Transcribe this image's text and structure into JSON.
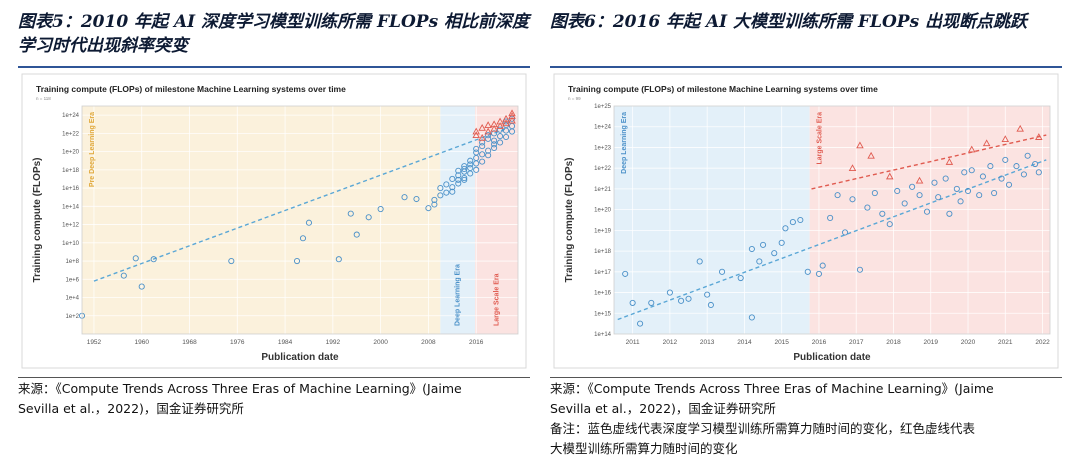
{
  "figures": [
    {
      "title": "图表5：2010 年起 AI 深度学习模型训练所需 FLOPs 相比前深度学习时代出现斜率突变",
      "source_line1": "来源：《Compute Trends Across Three Eras of Machine Learning》(Jaime",
      "source_line2": "Sevilla et al.，2022)，国金证券研究所",
      "notes": []
    },
    {
      "title": "图表6：2016 年起 AI 大模型训练所需 FLOPs 出现断点跳跃",
      "source_line1": "来源：《Compute Trends Across Three Eras of Machine Learning》(Jaime",
      "source_line2": "Sevilla et al.，2022)，国金证券研究所",
      "notes": [
        "备注：蓝色虚线代表深度学习模型训练所需算力随时间的变化，红色虚线代表",
        "大模型训练所需算力随时间的变化"
      ]
    }
  ],
  "chart_data": [
    {
      "type": "scatter",
      "title": "Training compute (FLOPs) of milestone Machine Learning systems over time",
      "subtitle": "n = 118",
      "xlabel": "Publication date",
      "ylabel": "Training compute (FLOPs)",
      "y_scale": "log",
      "xlim": [
        1950,
        2023
      ],
      "ylim_exp": [
        0,
        25
      ],
      "x_ticks": [
        "1952",
        "1960",
        "1968",
        "1976",
        "1984",
        "1992",
        "2000",
        "2008",
        "2016"
      ],
      "x_tick_values": [
        1952,
        1960,
        1968,
        1976,
        1984,
        1992,
        2000,
        2008,
        2016
      ],
      "y_ticks": [
        "1e+2",
        "1e+4",
        "1e+6",
        "1e+8",
        "1e+10",
        "1e+12",
        "1e+14",
        "1e+16",
        "1e+18",
        "1e+20",
        "1e+22",
        "1e+24"
      ],
      "y_tick_exps": [
        2,
        4,
        6,
        8,
        10,
        12,
        14,
        16,
        18,
        20,
        22,
        24
      ],
      "eras": [
        {
          "label": "Pre Deep Learning Era",
          "from": 1950,
          "to": 2010,
          "color": "#fbf1dc"
        },
        {
          "label": "Deep Learning Era",
          "from": 2010,
          "to": 2015.8,
          "color": "#e3f0f9"
        },
        {
          "label": "Large Scale Era",
          "from": 2015.8,
          "to": 2023,
          "color": "#fbe3e1"
        }
      ],
      "era_label_colors": [
        "#e0a83a",
        "#4a90c8",
        "#e05a4f"
      ],
      "trend_lines": [
        {
          "name": "",
          "color": "#5aa7d6",
          "from": [
            1952,
            5.8
          ],
          "to": [
            2021,
            22.5
          ]
        }
      ],
      "series": [
        {
          "name": "",
          "marker": "circle",
          "color": "#4a90c8",
          "points": [
            [
              1950,
              2.0
            ],
            [
              1957,
              6.4
            ],
            [
              1959,
              8.3
            ],
            [
              1960,
              5.2
            ],
            [
              1962,
              8.2
            ],
            [
              1975,
              8.0
            ],
            [
              1986,
              8.0
            ],
            [
              1987,
              10.5
            ],
            [
              1988,
              12.2
            ],
            [
              1993,
              8.2
            ],
            [
              1995,
              13.2
            ],
            [
              1996,
              10.9
            ],
            [
              1998,
              12.8
            ],
            [
              2000,
              13.7
            ],
            [
              2004,
              15.0
            ],
            [
              2006,
              14.8
            ],
            [
              2008,
              13.8
            ],
            [
              2009,
              14.2
            ],
            [
              2009,
              14.7
            ],
            [
              2010,
              15.2
            ],
            [
              2010,
              16.0
            ],
            [
              2011,
              15.5
            ],
            [
              2011,
              16.4
            ],
            [
              2012,
              16.1
            ],
            [
              2012,
              17.0
            ],
            [
              2012,
              15.6
            ],
            [
              2013,
              16.9
            ],
            [
              2013,
              17.4
            ],
            [
              2013,
              16.5
            ],
            [
              2013,
              17.9
            ],
            [
              2014,
              17.8
            ],
            [
              2014,
              18.4
            ],
            [
              2014,
              17.1
            ],
            [
              2014,
              18.1
            ],
            [
              2014,
              16.9
            ],
            [
              2015,
              18.6
            ],
            [
              2015,
              17.6
            ],
            [
              2015,
              19.0
            ],
            [
              2015,
              18.2
            ],
            [
              2016,
              19.3
            ],
            [
              2016,
              18.0
            ],
            [
              2016,
              19.9
            ],
            [
              2016,
              18.7
            ],
            [
              2016,
              20.3
            ],
            [
              2017,
              19.7
            ],
            [
              2017,
              20.6
            ],
            [
              2017,
              18.9
            ],
            [
              2017,
              21.0
            ],
            [
              2018,
              20.1
            ],
            [
              2018,
              21.4
            ],
            [
              2018,
              19.6
            ],
            [
              2018,
              21.8
            ],
            [
              2019,
              20.8
            ],
            [
              2019,
              22.0
            ],
            [
              2019,
              21.2
            ],
            [
              2019,
              20.4
            ],
            [
              2020,
              21.7
            ],
            [
              2020,
              22.4
            ],
            [
              2020,
              21.0
            ],
            [
              2021,
              22.3
            ],
            [
              2021,
              21.6
            ],
            [
              2021,
              22.9
            ],
            [
              2021,
              23.3
            ],
            [
              2022,
              22.8
            ],
            [
              2022,
              23.6
            ],
            [
              2022,
              22.2
            ]
          ]
        },
        {
          "name": "",
          "marker": "triangle",
          "color": "#e05a4f",
          "points": [
            [
              2016,
              21.8
            ],
            [
              2016,
              22.2
            ],
            [
              2017,
              22.6
            ],
            [
              2017,
              21.5
            ],
            [
              2018,
              22.9
            ],
            [
              2018,
              22.2
            ],
            [
              2019,
              23.0
            ],
            [
              2019,
              22.5
            ],
            [
              2020,
              23.3
            ],
            [
              2020,
              22.8
            ],
            [
              2021,
              23.6
            ],
            [
              2021,
              23.1
            ],
            [
              2022,
              23.9
            ],
            [
              2022,
              23.4
            ],
            [
              2022,
              24.2
            ]
          ]
        }
      ]
    },
    {
      "type": "scatter",
      "title": "Training compute (FLOPs) of milestone Machine Learning systems over time",
      "subtitle": "n = 99",
      "xlabel": "Publication date",
      "ylabel": "Training compute (FLOPs)",
      "y_scale": "log",
      "xlim": [
        2010.5,
        2022.2
      ],
      "ylim_exp": [
        14,
        25
      ],
      "x_ticks": [
        "2011",
        "2012",
        "2013",
        "2014",
        "2015",
        "2016",
        "2017",
        "2018",
        "2019",
        "2020",
        "2021",
        "2022"
      ],
      "x_tick_values": [
        2011,
        2012,
        2013,
        2014,
        2015,
        2016,
        2017,
        2018,
        2019,
        2020,
        2021,
        2022
      ],
      "y_ticks": [
        "1e+14",
        "1e+15",
        "1e+16",
        "1e+17",
        "1e+18",
        "1e+19",
        "1e+20",
        "1e+21",
        "1e+22",
        "1e+23",
        "1e+24",
        "1e+25"
      ],
      "y_tick_exps": [
        14,
        15,
        16,
        17,
        18,
        19,
        20,
        21,
        22,
        23,
        24,
        25
      ],
      "eras": [
        {
          "label": "Deep Learning Era",
          "from": 2010.5,
          "to": 2015.75,
          "color": "#e3f0f9"
        },
        {
          "label": "Large Scale Era",
          "from": 2015.75,
          "to": 2022.2,
          "color": "#fbe3e1"
        }
      ],
      "era_label_colors": [
        "#4a90c8",
        "#e05a4f"
      ],
      "trend_lines": [
        {
          "name": "",
          "color": "#5aa7d6",
          "from": [
            2010.6,
            14.7
          ],
          "to": [
            2022.1,
            22.4
          ]
        },
        {
          "name": "",
          "color": "#e05a4f",
          "from": [
            2015.8,
            21.0
          ],
          "to": [
            2022.1,
            23.6
          ]
        }
      ],
      "series": [
        {
          "name": "",
          "marker": "circle",
          "color": "#4a90c8",
          "points": [
            [
              2010.8,
              16.9
            ],
            [
              2011.0,
              15.5
            ],
            [
              2011.2,
              14.5
            ],
            [
              2011.5,
              15.5
            ],
            [
              2012.0,
              16.0
            ],
            [
              2012.3,
              15.6
            ],
            [
              2012.5,
              15.7
            ],
            [
              2012.8,
              17.5
            ],
            [
              2013.0,
              15.9
            ],
            [
              2013.1,
              15.4
            ],
            [
              2013.4,
              17.0
            ],
            [
              2013.9,
              16.7
            ],
            [
              2014.2,
              14.8
            ],
            [
              2014.2,
              18.1
            ],
            [
              2014.4,
              17.5
            ],
            [
              2014.5,
              18.3
            ],
            [
              2014.8,
              17.9
            ],
            [
              2015.0,
              18.4
            ],
            [
              2015.1,
              19.1
            ],
            [
              2015.3,
              19.4
            ],
            [
              2015.5,
              19.5
            ],
            [
              2015.7,
              17.0
            ],
            [
              2016.0,
              16.9
            ],
            [
              2016.1,
              17.3
            ],
            [
              2016.3,
              19.6
            ],
            [
              2016.5,
              20.7
            ],
            [
              2016.7,
              18.9
            ],
            [
              2016.9,
              20.5
            ],
            [
              2017.1,
              17.1
            ],
            [
              2017.3,
              20.1
            ],
            [
              2017.5,
              20.8
            ],
            [
              2017.7,
              19.8
            ],
            [
              2017.9,
              19.3
            ],
            [
              2018.1,
              20.9
            ],
            [
              2018.3,
              20.3
            ],
            [
              2018.5,
              21.1
            ],
            [
              2018.7,
              20.7
            ],
            [
              2018.9,
              19.9
            ],
            [
              2019.1,
              21.3
            ],
            [
              2019.2,
              20.6
            ],
            [
              2019.4,
              21.5
            ],
            [
              2019.5,
              19.8
            ],
            [
              2019.7,
              21.0
            ],
            [
              2019.8,
              20.4
            ],
            [
              2019.9,
              21.8
            ],
            [
              2020.0,
              20.9
            ],
            [
              2020.1,
              21.9
            ],
            [
              2020.3,
              20.7
            ],
            [
              2020.4,
              21.6
            ],
            [
              2020.6,
              22.1
            ],
            [
              2020.7,
              20.8
            ],
            [
              2020.9,
              21.5
            ],
            [
              2021.0,
              22.4
            ],
            [
              2021.1,
              21.2
            ],
            [
              2021.3,
              22.1
            ],
            [
              2021.5,
              21.7
            ],
            [
              2021.6,
              22.6
            ],
            [
              2021.8,
              22.2
            ],
            [
              2021.9,
              21.8
            ]
          ]
        },
        {
          "name": "",
          "marker": "triangle",
          "color": "#e05a4f",
          "points": [
            [
              2016.9,
              22.0
            ],
            [
              2017.1,
              23.1
            ],
            [
              2017.4,
              22.6
            ],
            [
              2017.9,
              21.6
            ],
            [
              2018.7,
              21.4
            ],
            [
              2019.5,
              22.3
            ],
            [
              2020.1,
              22.9
            ],
            [
              2020.5,
              23.2
            ],
            [
              2021.0,
              23.4
            ],
            [
              2021.4,
              23.9
            ],
            [
              2021.9,
              23.5
            ]
          ]
        }
      ]
    }
  ]
}
